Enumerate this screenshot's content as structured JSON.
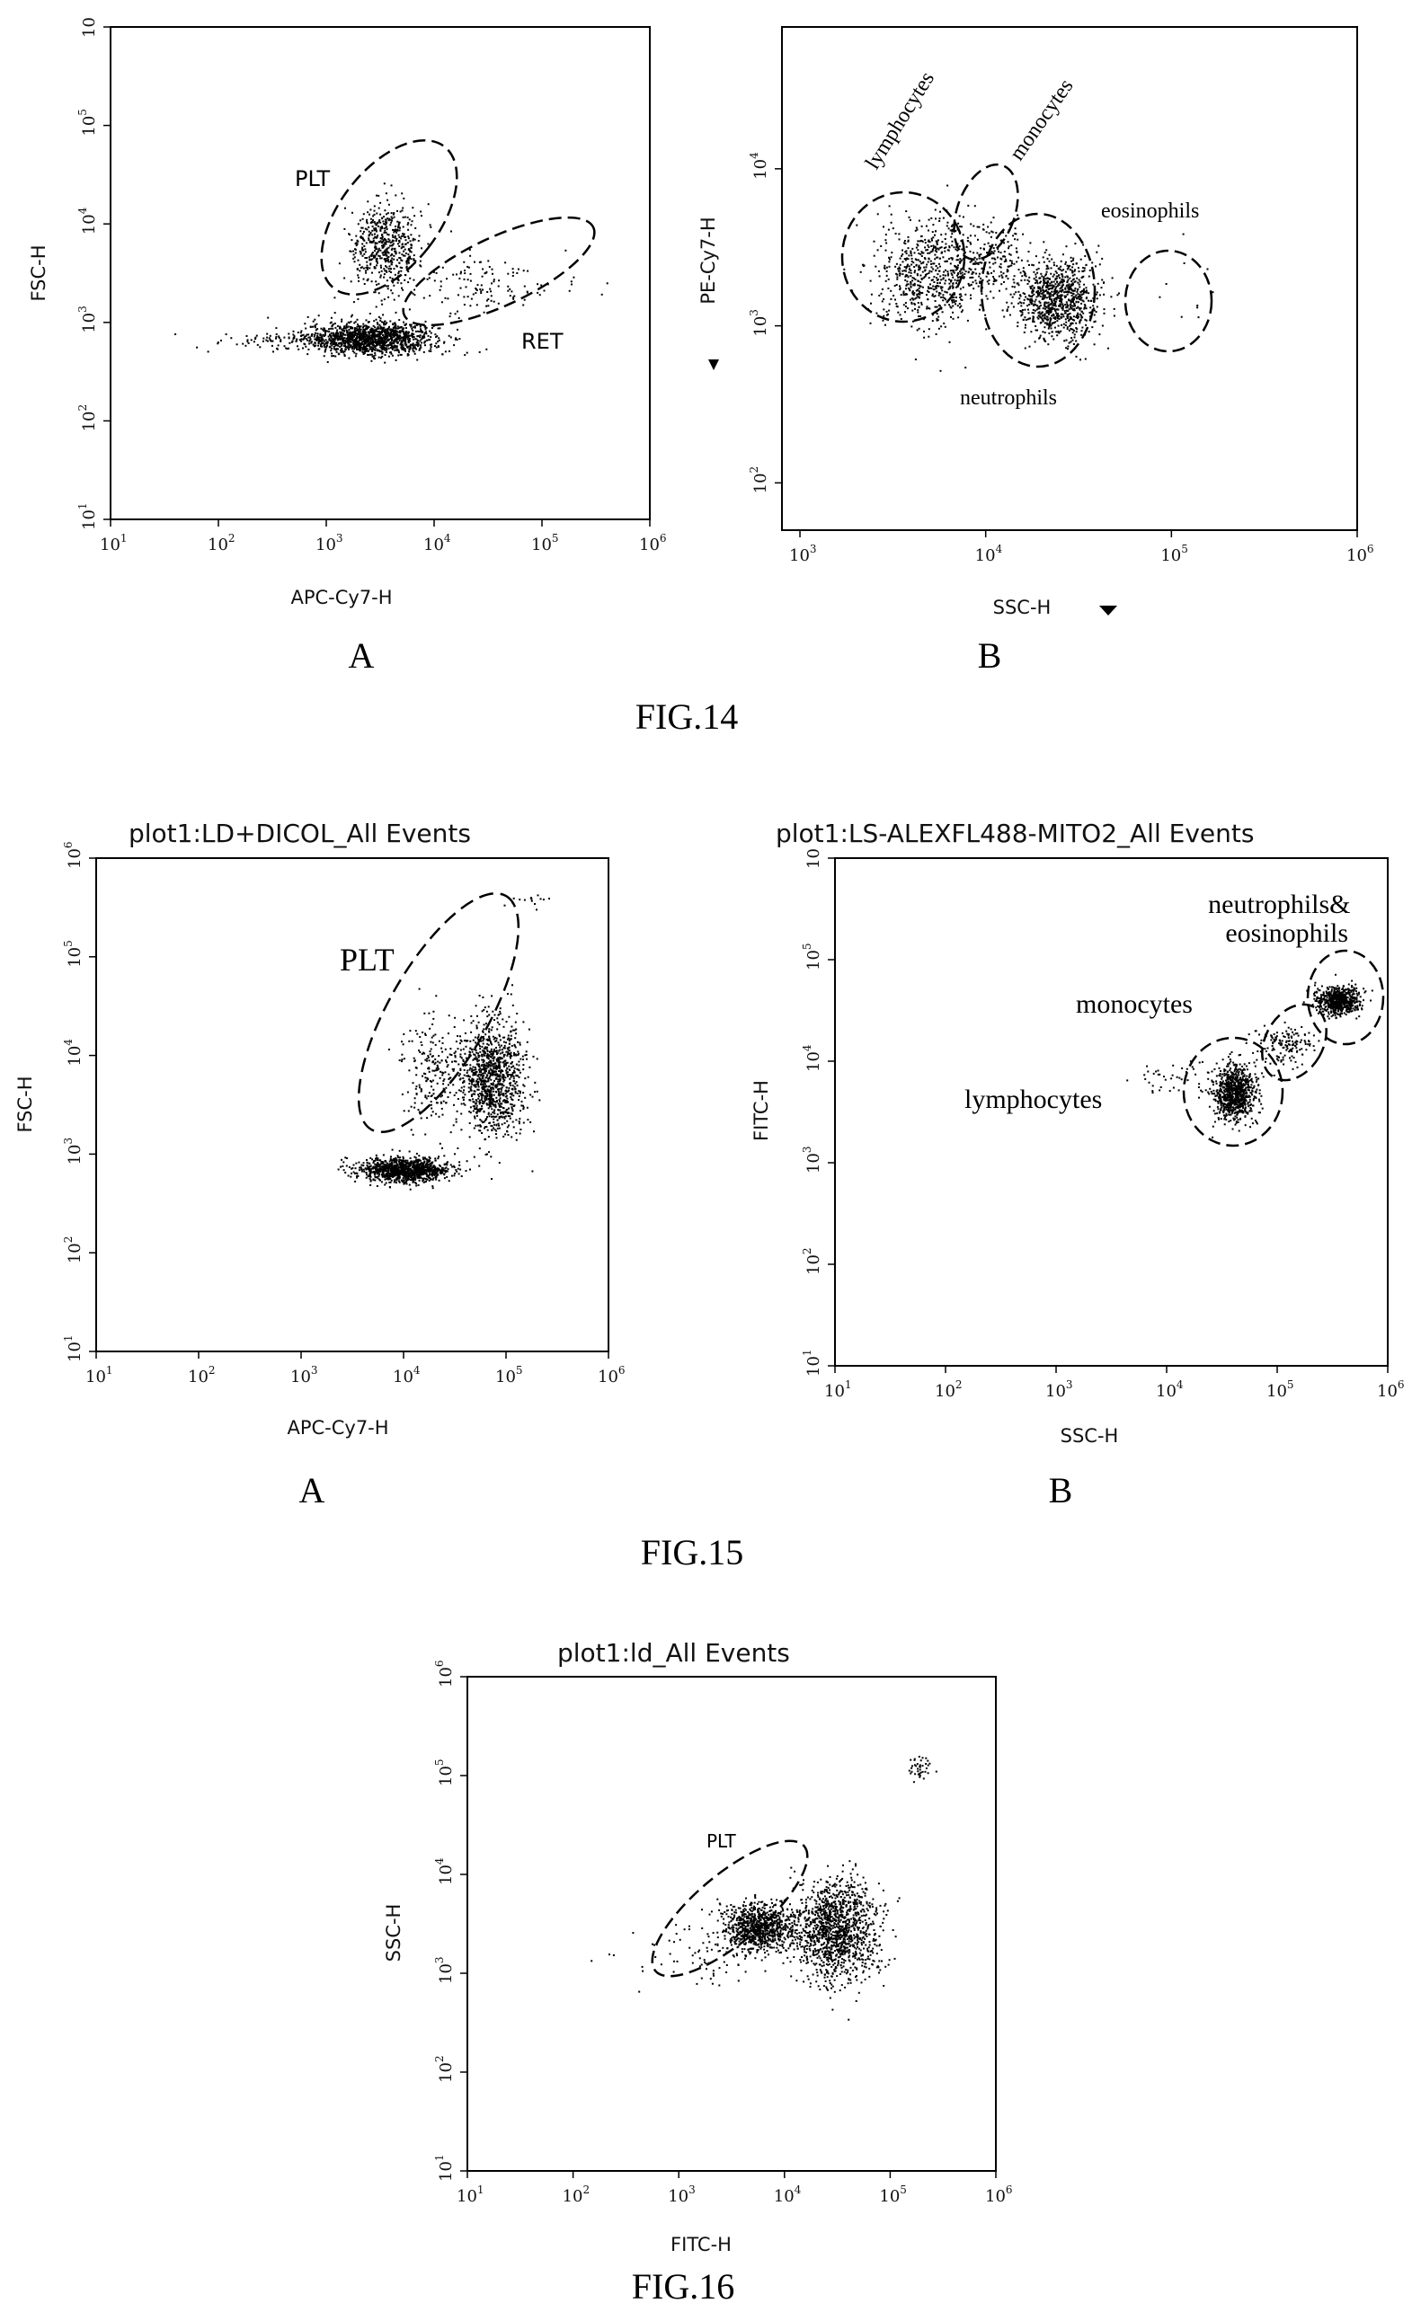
{
  "figures": [
    {
      "caption": "FIG.14",
      "panels": [
        "A",
        "B"
      ]
    },
    {
      "caption": "FIG.15",
      "panels": [
        "A",
        "B"
      ]
    },
    {
      "caption": "FIG.16",
      "panels": []
    }
  ],
  "chart_data": [
    {
      "type": "scatter",
      "figure": "FIG.14",
      "panel": "A",
      "title": "",
      "xlabel": "APC-Cy7-H",
      "ylabel": "FSC-H",
      "log_scale": true,
      "xlim": [
        10,
        1000000
      ],
      "ylim": [
        10,
        1000000
      ],
      "x_ticks": [
        "10^1",
        "10^2",
        "10^3",
        "10^4",
        "10^5",
        "10^6"
      ],
      "y_ticks": [
        "10^1",
        "10^2",
        "10^3",
        "10^4",
        "10^5",
        "10"
      ],
      "gates": [
        {
          "label": "PLT",
          "center": [
            3000,
            6000
          ],
          "x_range": [
            1500,
            7000
          ],
          "y_range": [
            1500,
            25000
          ]
        },
        {
          "label": "RET",
          "center": [
            30000,
            3000
          ],
          "x_range": [
            6000,
            200000
          ],
          "y_range": [
            1000,
            9000
          ]
        }
      ],
      "clusters": [
        {
          "center": [
            2500,
            700
          ],
          "spread": [
            0.3,
            0.08
          ],
          "points": 1400
        },
        {
          "center": [
            3500,
            6000
          ],
          "spread": [
            0.16,
            0.22
          ],
          "points": 550
        },
        {
          "center": [
            25000,
            2500
          ],
          "spread": [
            0.35,
            0.15
          ],
          "points": 130
        },
        {
          "center": [
            400,
            680
          ],
          "spread": [
            0.35,
            0.06
          ],
          "points": 70
        }
      ],
      "grid": false
    },
    {
      "type": "scatter",
      "figure": "FIG.14",
      "panel": "B",
      "title": "",
      "xlabel": "SSC-H",
      "ylabel": "PE-Cy7-H",
      "log_scale": true,
      "xlim": [
        800,
        1000000
      ],
      "ylim": [
        50,
        80000
      ],
      "x_ticks": [
        "10^3",
        "10^4",
        "10^5",
        "10^6"
      ],
      "y_ticks": [
        "10^2",
        "10^3",
        "10^4"
      ],
      "gates": [
        {
          "label": "lymphocytes",
          "center": [
            5000,
            2000
          ]
        },
        {
          "label": "monocytes",
          "center": [
            11000,
            3500
          ]
        },
        {
          "label": "neutrophils",
          "center": [
            25000,
            1500
          ]
        },
        {
          "label": "eosinophils",
          "center": [
            120000,
            1200
          ]
        }
      ],
      "clusters": [
        {
          "center": [
            5000,
            2200
          ],
          "spread": [
            0.15,
            0.17
          ],
          "points": 700
        },
        {
          "center": [
            24000,
            1500
          ],
          "spread": [
            0.11,
            0.13
          ],
          "points": 900
        },
        {
          "center": [
            11000,
            2600
          ],
          "spread": [
            0.1,
            0.13
          ],
          "points": 160
        },
        {
          "center": [
            125000,
            1500
          ],
          "spread": [
            0.1,
            0.15
          ],
          "points": 10
        }
      ],
      "grid": false
    },
    {
      "type": "scatter",
      "figure": "FIG.15",
      "panel": "A",
      "title": "plot1:LD+DICOL_All Events",
      "xlabel": "APC-Cy7-H",
      "ylabel": "FSC-H",
      "log_scale": true,
      "xlim": [
        10,
        1000000
      ],
      "ylim": [
        10,
        1000000
      ],
      "x_ticks": [
        "10^1",
        "10^2",
        "10^3",
        "10^4",
        "10^5",
        "10^6"
      ],
      "y_ticks": [
        "10^1",
        "10^2",
        "10^3",
        "10^4",
        "10^5",
        "10^6"
      ],
      "gates": [
        {
          "label": "PLT",
          "center": [
            25000,
            12000
          ],
          "x_range": [
            3000,
            150000
          ],
          "y_range": [
            1500,
            90000
          ]
        }
      ],
      "clusters": [
        {
          "center": [
            10000,
            700
          ],
          "spread": [
            0.22,
            0.06
          ],
          "points": 1100
        },
        {
          "center": [
            70000,
            6000
          ],
          "spread": [
            0.16,
            0.3
          ],
          "points": 1100
        },
        {
          "center": [
            18000,
            7000
          ],
          "spread": [
            0.15,
            0.25
          ],
          "points": 200
        },
        {
          "center": [
            150000,
            400000
          ],
          "spread": [
            0.15,
            0.05
          ],
          "points": 15
        }
      ],
      "grid": false
    },
    {
      "type": "scatter",
      "figure": "FIG.15",
      "panel": "B",
      "title": "plot1:LS-ALEXFL488-MITO2_All Events",
      "xlabel": "SSC-H",
      "ylabel": "FITC-H",
      "log_scale": true,
      "xlim": [
        10,
        1000000
      ],
      "ylim": [
        10,
        1000000
      ],
      "x_ticks": [
        "10^1",
        "10^2",
        "10^3",
        "10^4",
        "10^5",
        "10^6"
      ],
      "y_ticks": [
        "10^1",
        "10^2",
        "10^3",
        "10^4",
        "10^5",
        "10"
      ],
      "gates": [
        {
          "label": "lymphocytes",
          "center": [
            40000,
            5000
          ]
        },
        {
          "label": "monocytes",
          "center": [
            110000,
            13000
          ]
        },
        {
          "label": "neutrophils&\neosinophils",
          "center": [
            350000,
            40000
          ]
        }
      ],
      "clusters": [
        {
          "center": [
            40000,
            5000
          ],
          "spread": [
            0.1,
            0.14
          ],
          "points": 850
        },
        {
          "center": [
            120000,
            15000
          ],
          "spread": [
            0.13,
            0.1
          ],
          "points": 150
        },
        {
          "center": [
            350000,
            40000
          ],
          "spread": [
            0.1,
            0.07
          ],
          "points": 650
        },
        {
          "center": [
            10000,
            7000
          ],
          "spread": [
            0.15,
            0.1
          ],
          "points": 40
        }
      ],
      "grid": false
    },
    {
      "type": "scatter",
      "figure": "FIG.16",
      "panel": "",
      "title": "plot1:ld_All Events",
      "xlabel": "FITC-H",
      "ylabel": "SSC-H",
      "log_scale": true,
      "xlim": [
        10,
        1000000
      ],
      "ylim": [
        10,
        1000000
      ],
      "x_ticks": [
        "10^1",
        "10^2",
        "10^3",
        "10^4",
        "10^5",
        "10^6"
      ],
      "y_ticks": [
        "10^1",
        "10^2",
        "10^3",
        "10^4",
        "10^5",
        "10^6"
      ],
      "gates": [
        {
          "label": "PLT",
          "center": [
            5000,
            3000
          ],
          "x_range": [
            1500,
            15000
          ],
          "y_range": [
            800,
            12000
          ]
        }
      ],
      "clusters": [
        {
          "center": [
            5500,
            3000
          ],
          "spread": [
            0.17,
            0.12
          ],
          "points": 900
        },
        {
          "center": [
            30000,
            2800
          ],
          "spread": [
            0.2,
            0.25
          ],
          "points": 1300
        },
        {
          "center": [
            200000,
            120000
          ],
          "spread": [
            0.06,
            0.09
          ],
          "points": 40
        },
        {
          "center": [
            1500,
            1500
          ],
          "spread": [
            0.3,
            0.2
          ],
          "points": 70
        }
      ],
      "grid": false
    }
  ]
}
